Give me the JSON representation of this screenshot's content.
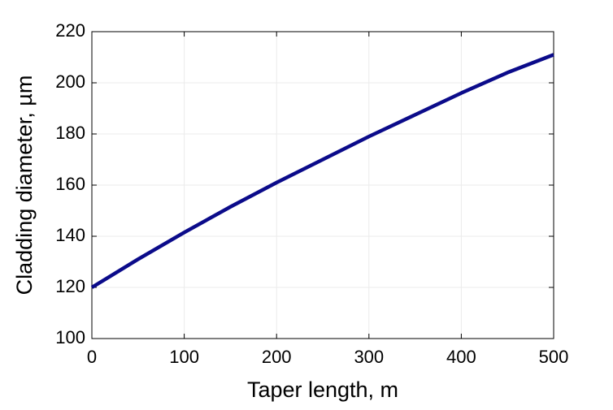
{
  "chart_data": {
    "type": "line",
    "x_label": "Taper length, m",
    "y_label": "Cladding diameter, µm",
    "x": [
      0,
      50,
      100,
      150,
      200,
      250,
      300,
      350,
      400,
      450,
      500
    ],
    "series": [
      {
        "color": "#0b0b8a",
        "values": [
          120,
          131,
          141.5,
          151.5,
          161,
          170,
          179,
          187.5,
          196,
          204,
          211
        ]
      }
    ],
    "xlim": [
      0,
      500
    ],
    "xticks": [
      0,
      100,
      200,
      300,
      400,
      500
    ],
    "ylim": [
      100,
      220
    ],
    "yticks": [
      100,
      120,
      140,
      160,
      180,
      200,
      220
    ],
    "grid": true
  }
}
